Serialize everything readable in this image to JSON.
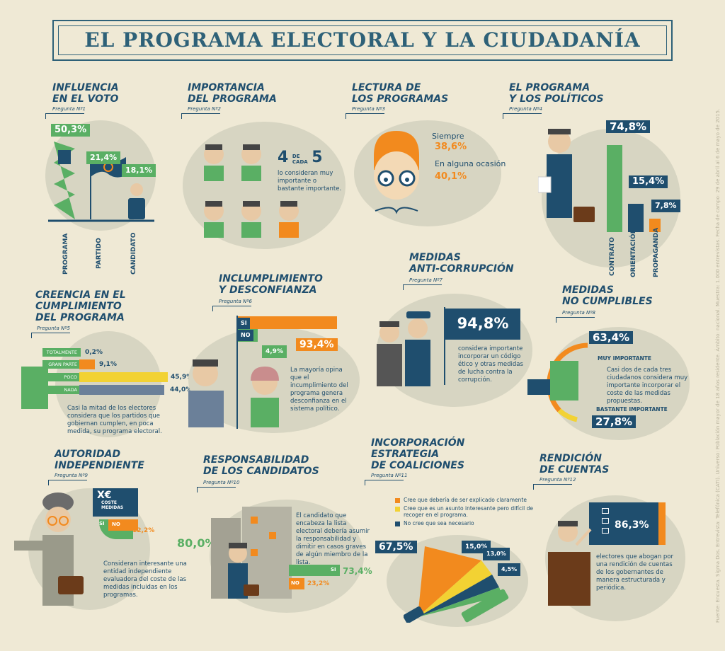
{
  "title": "EL PROGRAMA ELECTORAL Y LA CIUDADANÍA",
  "colors": {
    "navy": "#1f4e6e",
    "green": "#5aaf64",
    "orange": "#f28a1e",
    "yellow": "#f2d233",
    "bg": "#efe9d5",
    "circle": "#d7d5c2"
  },
  "s1": {
    "title1": "INFLUENCIA",
    "title2": "EN EL VOTO",
    "q": "Pregunta Nº1",
    "v1": "50,3%",
    "v2": "21,4%",
    "v3": "18,1%",
    "l1": "PROGRAMA",
    "l2": "PARTIDO",
    "l3": "CANDIDATO"
  },
  "s2": {
    "title1": "IMPORTANCIA",
    "title2": "DEL PROGRAMA",
    "q": "Pregunta Nº2",
    "n1": "4",
    "de": "DE",
    "cada": "CADA",
    "n2": "5",
    "text": "lo consideran muy importante o bastante importante."
  },
  "s3": {
    "title1": "LECTURA DE",
    "title2": "LOS PROGRAMAS",
    "q": "Pregunta Nº3",
    "a_label": "Siempre",
    "a_value": "38,6%",
    "b_label": "En alguna ocasión",
    "b_value": "40,1%"
  },
  "s4": {
    "title1": "EL PROGRAMA",
    "title2": "Y LOS POLÍTICOS",
    "q": "Pregunta Nº4",
    "v1": "74,8%",
    "v2": "15,4%",
    "v3": "7,8%",
    "l1": "CONTRATO",
    "l2": "ORIENTACIÓN",
    "l3": "PROPAGANDA"
  },
  "s5": {
    "title1": "CREENCIA EN EL",
    "title2": "CUMPLIMIENTO",
    "title3": "DEL PROGRAMA",
    "q": "Pregunta Nº5",
    "bars": [
      {
        "label": "TOTALMENTE",
        "value": "0,2%"
      },
      {
        "label": "GRAN PARTE",
        "value": "9,1%"
      },
      {
        "label": "POCO",
        "value": "45,9%"
      },
      {
        "label": "NADA",
        "value": "44,0%"
      }
    ],
    "text": "Casi la mitad de los electores considera que los partidos que gobiernan cumplen, en poca medida, su programa electoral."
  },
  "s6": {
    "title1": "INCLUMPLIMIENTO",
    "title2": "Y DESCONFIANZA",
    "q": "Pregunta Nº6",
    "si": "SI",
    "no": "NO",
    "v_no": "4,9%",
    "v_si": "93,4%",
    "text": "La mayoría opina que el incumplimiento del programa genera desconfianza en el sistema político."
  },
  "s7": {
    "title1": "MEDIDAS",
    "title2": "ANTI-CORRUPCIÓN",
    "q": "Pregunta Nº7",
    "value": "94,8%",
    "text": "considera importante incorporar un código ético y otras medidas de lucha contra la corrupción."
  },
  "s8": {
    "title1": "MEDIDAS",
    "title2": "NO CUMPLIBLES",
    "q": "Pregunta Nº8",
    "v1": "63,4%",
    "l1": "MUY IMPORTANTE",
    "v2": "27,8%",
    "l2": "BASTANTE IMPORTANTE",
    "text": "Casi dos de cada tres ciudadanos considera muy importante incorporar el coste de las medidas propuestas."
  },
  "s9": {
    "title1": "AUTORIDAD",
    "title2": "INDEPENDIENTE",
    "q": "Pregunta Nº9",
    "sign": "X€",
    "coste": "COSTE",
    "medidas": "MEDIDAS",
    "si": "SI",
    "no": "NO",
    "v_no": "12,2%",
    "v_si": "80,0%",
    "text": "Consideran interesante una entidad independiente evaluadora del coste de las medidas incluidas en los programas."
  },
  "s10": {
    "title1": "RESPONSABILIDAD",
    "title2": "DE LOS CANDIDATOS",
    "q": "Pregunta Nº10",
    "si": "SI",
    "no": "NO",
    "v_si": "73,4%",
    "v_no": "23,2%",
    "text": "El candidato que encabeza la lista electoral debería asumir la responsabilidad y dimitir en casos graves de algún miembro de la lista."
  },
  "s11": {
    "title1": "INCORPORACIÓN",
    "title2": "ESTRATEGIA",
    "title3": "DE COALICIONES",
    "q": "Pregunta Nº11",
    "legend": [
      "Cree que debería de ser explicado claramente",
      "Cree que es un asunto interesante pero difícil de recoger en el programa.",
      "No cree que sea necesario"
    ],
    "v1": "67,5%",
    "v2": "15,0%",
    "v3": "13,0%",
    "v4": "4,5%"
  },
  "s12": {
    "title1": "RENDICIÓN",
    "title2": "DE CUENTAS",
    "q": "Pregunta Nº12",
    "value": "86,3%",
    "text": "electores que abogan por una rendición de cuentas de los gobernantes de manera estructurada y periódica."
  },
  "credit": "Fuente: Encuesta. Sigma Dos. Entrevista: Telefónica (CATI). Universo: Población mayor de 18 años residente. Ámbito: nacional. Muestra: 1.000 entrevistas. Fecha de campo: 29 de abril al 6 de mayo de 2015."
}
